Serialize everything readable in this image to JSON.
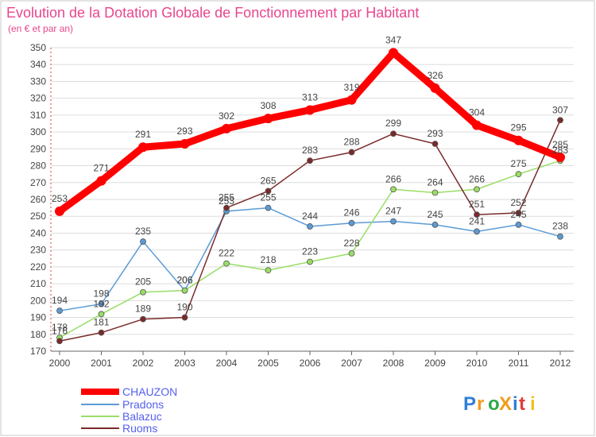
{
  "chart_data": {
    "type": "line",
    "title": "Evolution de la Dotation Globale de Fonctionnement par Habitant",
    "subtitle": "(en € et par an)",
    "x": [
      "2000",
      "2001",
      "2002",
      "2003",
      "2004",
      "2005",
      "2006",
      "2007",
      "2008",
      "2009",
      "2010",
      "2011",
      "2012"
    ],
    "ylim": [
      170,
      350
    ],
    "yticks": [
      170,
      180,
      190,
      200,
      210,
      220,
      230,
      240,
      250,
      260,
      270,
      280,
      290,
      300,
      310,
      320,
      330,
      340,
      350
    ],
    "grid": "horizontal",
    "legend_position": "bottom-left",
    "series": [
      {
        "name": "CHAUZON",
        "color": "#ff0000",
        "values": [
          253,
          271,
          291,
          293,
          302,
          308,
          313,
          319,
          347,
          326,
          304,
          295,
          285
        ]
      },
      {
        "name": "Pradons",
        "color": "#5b9bd5",
        "values": [
          194,
          198,
          235,
          206,
          253,
          255,
          244,
          246,
          247,
          245,
          241,
          245,
          238
        ]
      },
      {
        "name": "Balazuc",
        "color": "#99dd66",
        "values": [
          178,
          192,
          205,
          206,
          222,
          218,
          223,
          228,
          266,
          264,
          266,
          275,
          283
        ]
      },
      {
        "name": "Ruoms",
        "color": "#7a2a2a",
        "values": [
          176,
          181,
          189,
          190,
          255,
          265,
          283,
          288,
          299,
          293,
          251,
          252,
          307
        ]
      }
    ]
  },
  "branding": {
    "logo_text": "ProXiti"
  }
}
